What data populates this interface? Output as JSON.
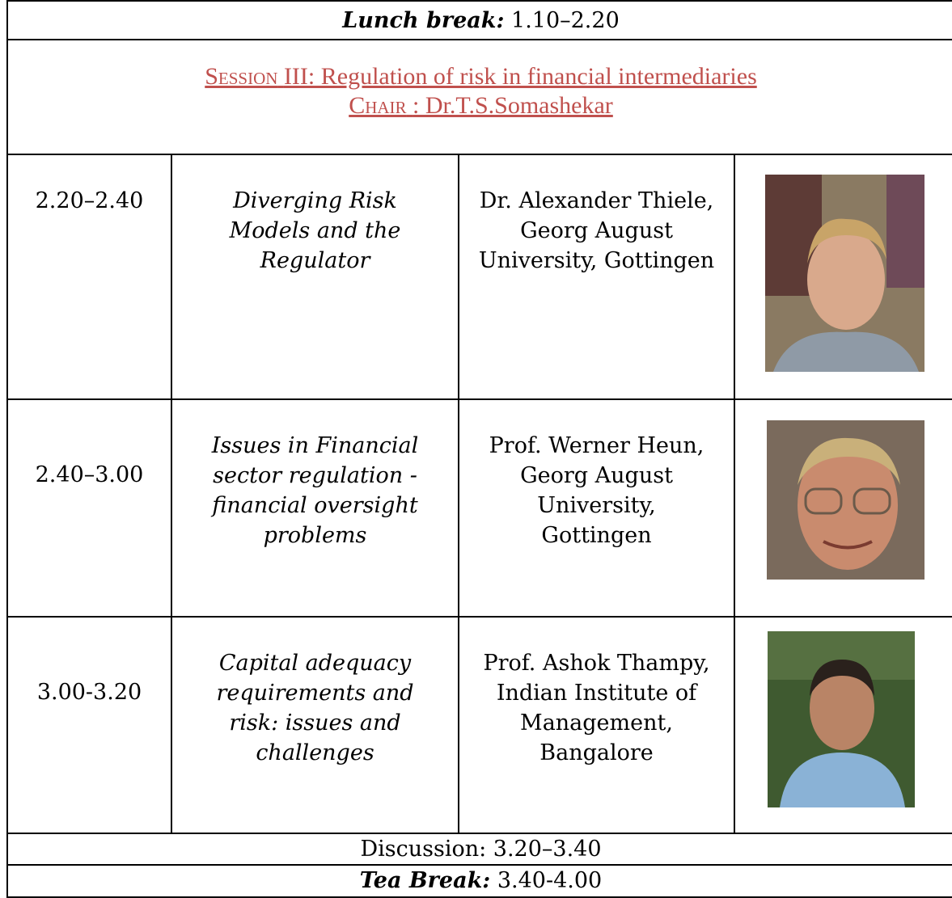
{
  "lunch": {
    "label": "Lunch break:",
    "time": "1.10–2.20"
  },
  "session": {
    "label": "Session",
    "title": "III: Regulation of risk in financial intermediaries",
    "chair_label": "Chair",
    "chair": ": Dr.T.S.Somashekar"
  },
  "talks": [
    {
      "time": "2.20–2.40",
      "title": [
        "Diverging Risk",
        "Models and the",
        "Regulator"
      ],
      "speaker": [
        "Dr. Alexander Thiele,",
        "Georg August",
        "University, Gottingen"
      ]
    },
    {
      "time": "2.40–3.00",
      "title": [
        "Issues in Financial",
        "sector regulation -",
        "financial oversight",
        "problems"
      ],
      "speaker": [
        "Prof. Werner Heun,",
        "Georg August",
        "University,",
        "Gottingen"
      ]
    },
    {
      "time": "3.00-3.20",
      "title": [
        "Capital adequacy",
        "requirements and",
        "risk: issues and",
        "challenges"
      ],
      "speaker": [
        "Prof. Ashok Thampy,",
        "Indian Institute of",
        "Management,",
        "Bangalore"
      ]
    }
  ],
  "discussion": {
    "label": "Discussion:",
    "time": "3.20–3.40"
  },
  "tea": {
    "label": "Tea Break:",
    "time": "3.40-4.00"
  }
}
